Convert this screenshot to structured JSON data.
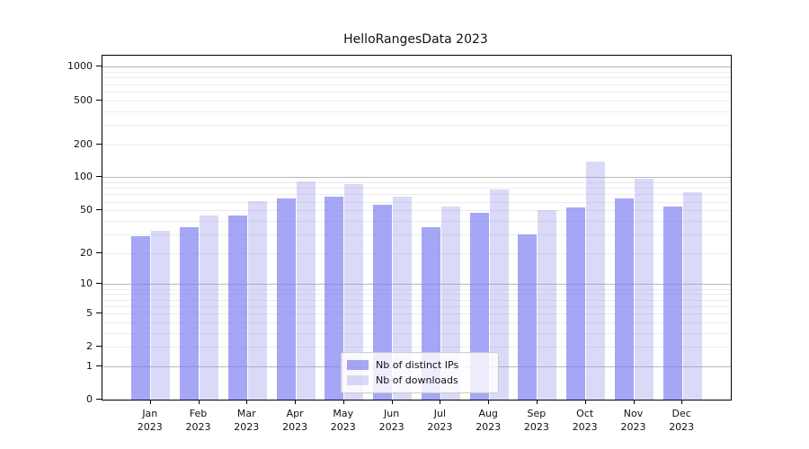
{
  "title": "HelloRangesData 2023",
  "chart_data": {
    "type": "bar",
    "title": "HelloRangesData 2023",
    "yscale": "log1p",
    "grid": true,
    "legend_position": "lower center",
    "ylim": [
      0,
      1260
    ],
    "yticks": [
      0,
      1,
      2,
      5,
      10,
      20,
      50,
      100,
      200,
      500,
      1000
    ],
    "categories": [
      "Jan",
      "Feb",
      "Mar",
      "Apr",
      "May",
      "Jun",
      "Jul",
      "Aug",
      "Sep",
      "Oct",
      "Nov",
      "Dec"
    ],
    "year": "2023",
    "series": [
      {
        "name": "Nb of distinct IPs",
        "color": "rgba(128,128,242,0.70)",
        "values": [
          29,
          35,
          45,
          64,
          66,
          56,
          35,
          47,
          30,
          53,
          64,
          54
        ]
      },
      {
        "name": "Nb of downloads",
        "color": "rgba(148,148,235,0.35)",
        "values": [
          32,
          45,
          61,
          92,
          87,
          67,
          54,
          78,
          50,
          140,
          98,
          73
        ]
      }
    ]
  }
}
